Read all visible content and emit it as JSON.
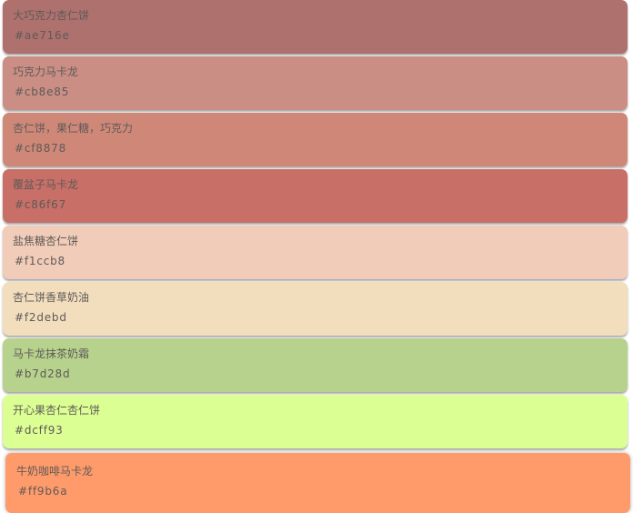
{
  "colors": [
    {
      "name": "大巧克力杏仁饼",
      "hex": "#ae716e"
    },
    {
      "name": "巧克力马卡龙",
      "hex": "#cb8e85"
    },
    {
      "name": "杏仁饼，果仁糖，巧克力",
      "hex": "#cf8878"
    },
    {
      "name": "覆盆子马卡龙",
      "hex": "#c86f67"
    },
    {
      "name": "盐焦糖杏仁饼",
      "hex": "#f1ccb8"
    },
    {
      "name": "杏仁饼香草奶油",
      "hex": "#f2debd"
    },
    {
      "name": "马卡龙抹茶奶霜",
      "hex": "#b7d28d"
    },
    {
      "name": "开心果杏仁杏仁饼",
      "hex": "#dcff93"
    },
    {
      "name": "牛奶咖啡马卡龙",
      "hex": "#ff9b6a"
    }
  ]
}
